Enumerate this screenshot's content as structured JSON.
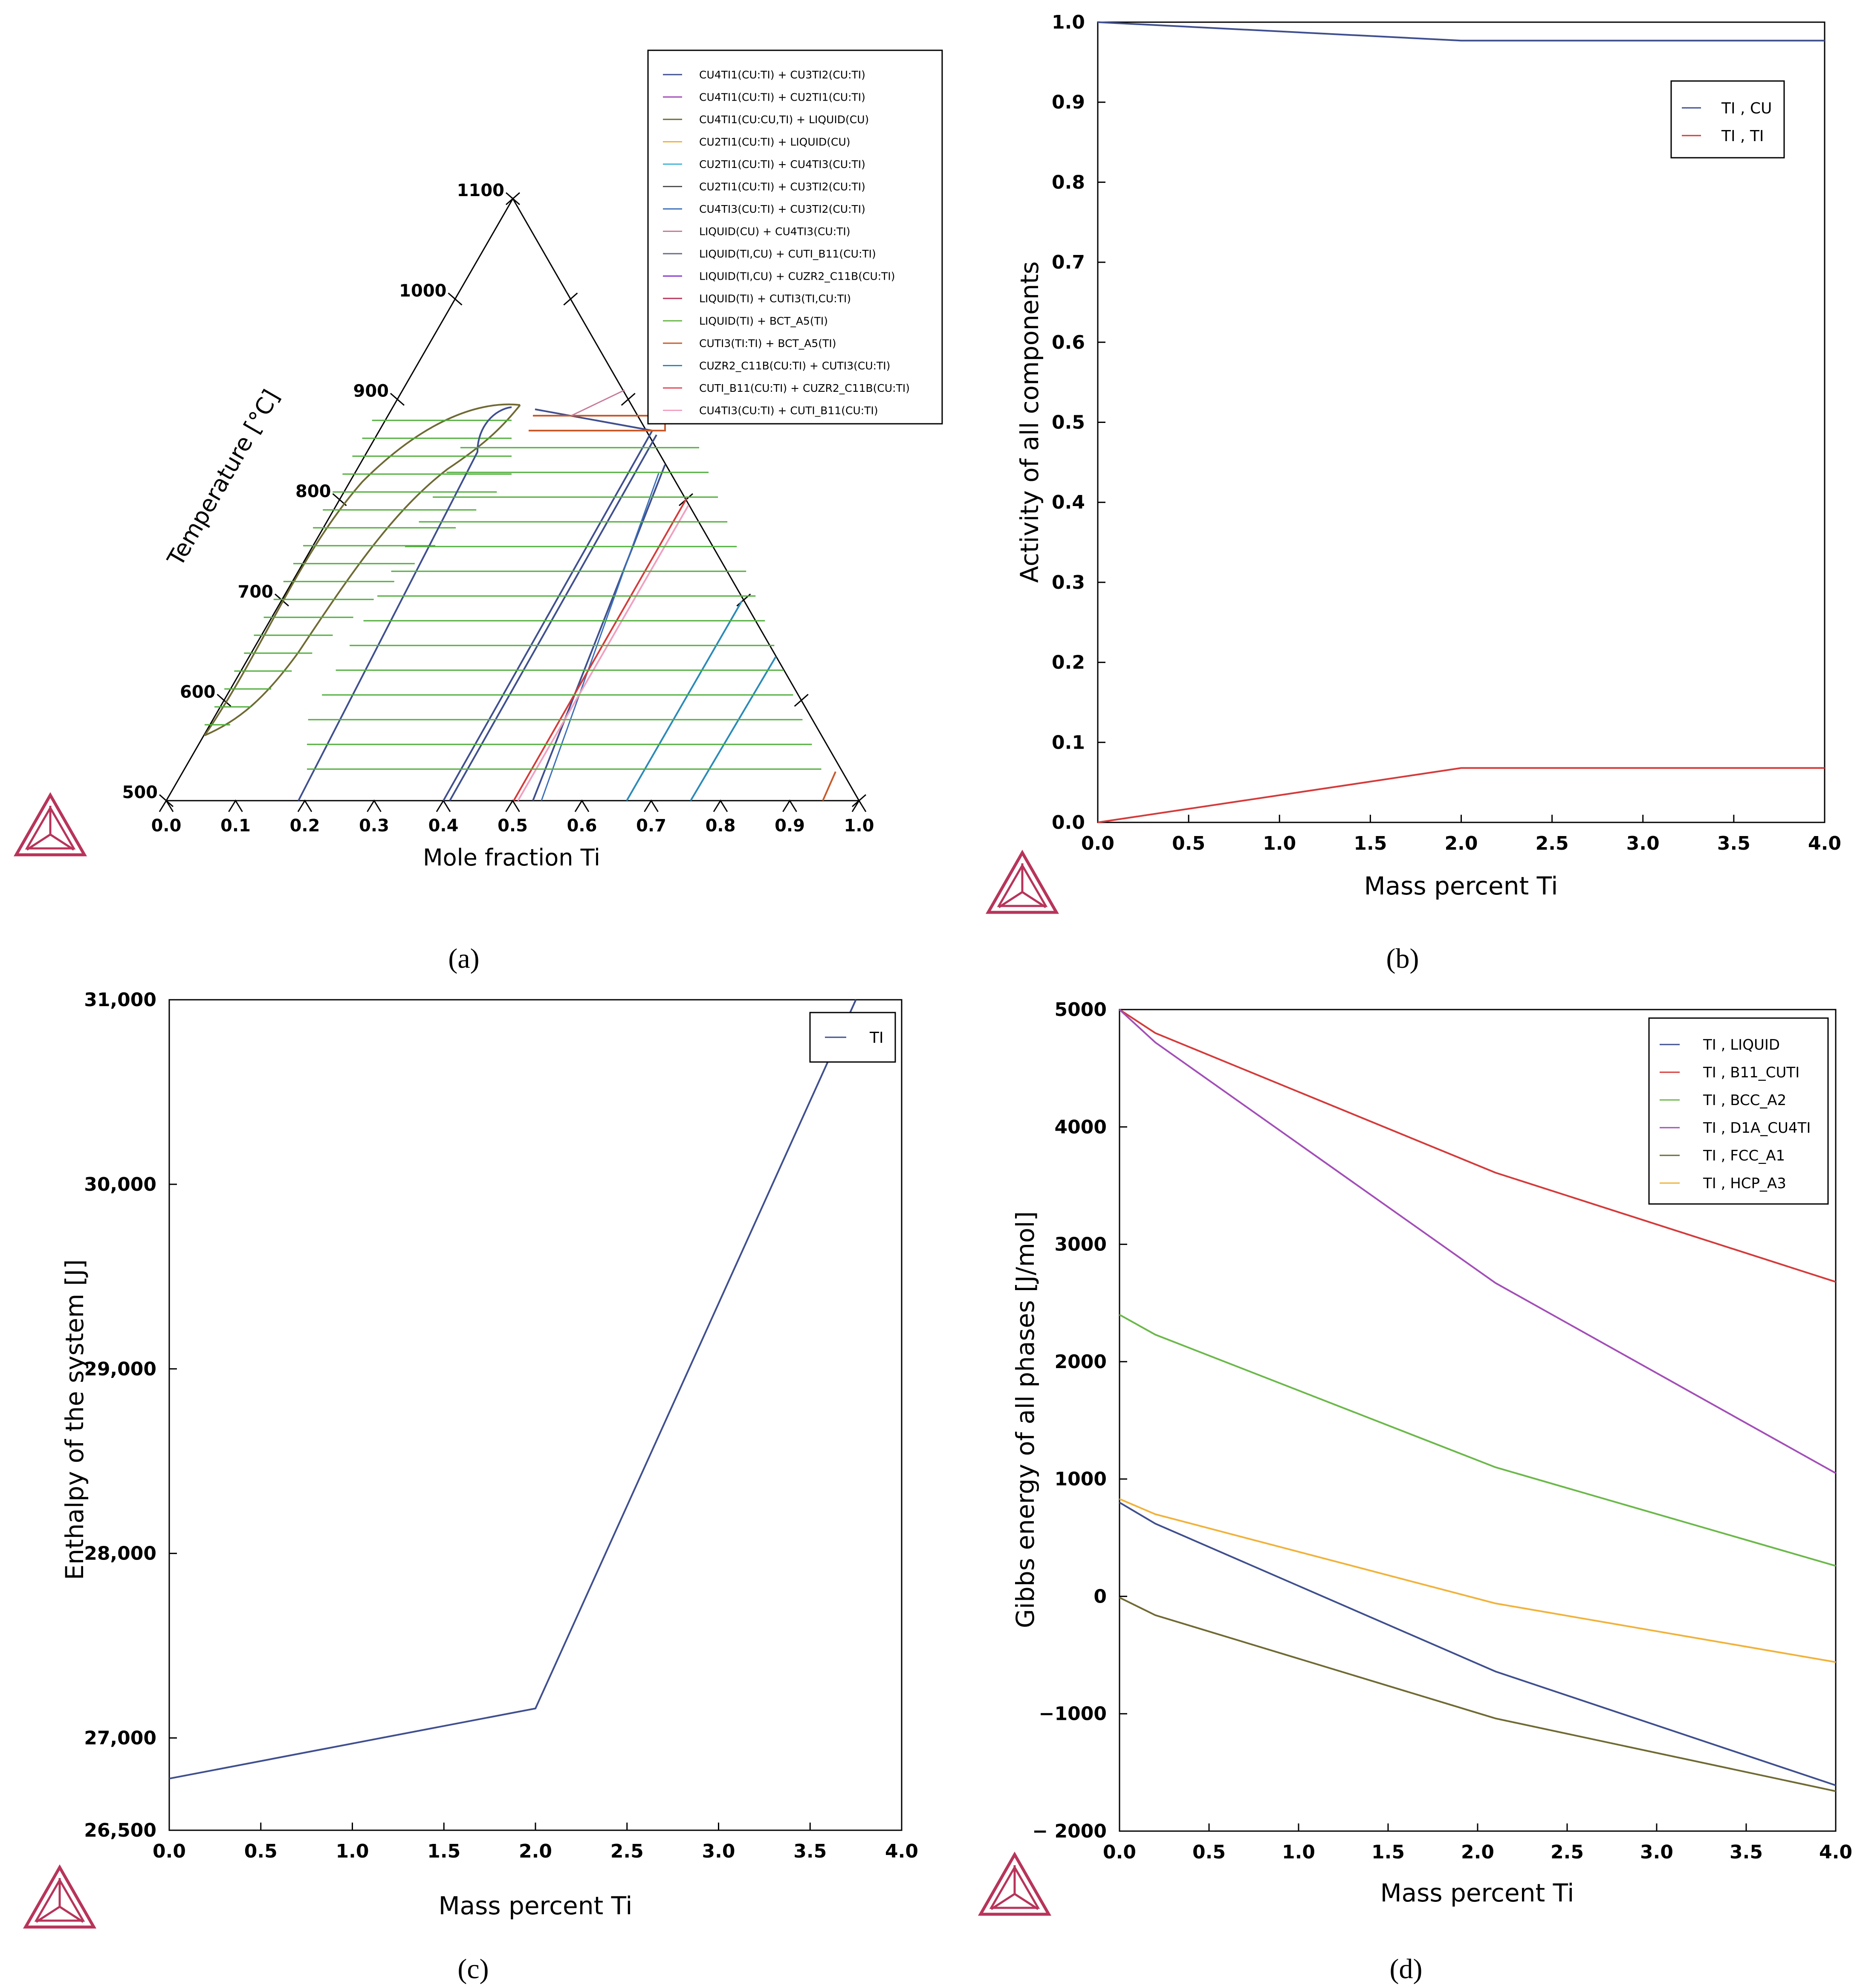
{
  "colors": {
    "blue": "#3f4f8f",
    "red": "#d53a3a",
    "green": "#6bb84a",
    "purple": "#a34fb8",
    "olive": "#6f6a33",
    "orange": "#f1b23a",
    "tie_green": "#4fae3a",
    "logo": "#b8345a"
  },
  "panel_labels": [
    "(a)",
    "(b)",
    "(c)",
    "(d)"
  ],
  "chart_data": [
    {
      "type": "line",
      "panel": "a",
      "title": "",
      "xlabel": "Mole fraction Ti",
      "ylabel": "Temperature [°C]",
      "x_ticks": [
        "0.0",
        "0.1",
        "0.2",
        "0.3",
        "0.4",
        "0.5",
        "0.6",
        "0.7",
        "0.8",
        "0.9",
        "1.0"
      ],
      "y_ticks": [
        "500",
        "600",
        "700",
        "800",
        "900",
        "1000",
        "1100"
      ],
      "legend": [
        {
          "label": "CU4TI1(CU:TI) + CU3TI2(CU:TI)",
          "color": "#3f4f8f"
        },
        {
          "label": "CU4TI1(CU:TI) + CU2TI1(CU:TI)",
          "color": "#a34fb8"
        },
        {
          "label": "CU4TI1(CU:CU,TI) + LIQUID(CU)",
          "color": "#6f6a33"
        },
        {
          "label": "CU2TI1(CU:TI) + LIQUID(CU)",
          "color": "#f1b23a"
        },
        {
          "label": "CU2TI1(CU:TI) + CU4TI3(CU:TI)",
          "color": "#3fb3d6"
        },
        {
          "label": "CU2TI1(CU:TI) + CU3TI2(CU:TI)",
          "color": "#555555"
        },
        {
          "label": "CU4TI3(CU:TI) + CU3TI2(CU:TI)",
          "color": "#3a6fb8"
        },
        {
          "label": "LIQUID(CU) + CU4TI3(CU:TI)",
          "color": "#c77a9a"
        },
        {
          "label": "LIQUID(TI,CU) + CUTI_B11(CU:TI)",
          "color": "#6a6a8a"
        },
        {
          "label": "LIQUID(TI,CU) + CUZR2_C11B(CU:TI)",
          "color": "#8a3fd0"
        },
        {
          "label": "LIQUID(TI) + CUTI3(TI,CU:TI)",
          "color": "#b8345a"
        },
        {
          "label": "LIQUID(TI) + BCT_A5(TI)",
          "color": "#6bb84a"
        },
        {
          "label": "CUTI3(TI:TI) + BCT_A5(TI)",
          "color": "#c85a2a"
        },
        {
          "label": "CUZR2_C11B(CU:TI) + CUTI3(CU:TI)",
          "color": "#2a8ab8"
        },
        {
          "label": "CUTI_B11(CU:TI) + CUZR2_C11B(CU:TI)",
          "color": "#e04a5a"
        },
        {
          "label": "CU4TI3(CU:TI) + CUTI_B11(CU:TI)",
          "color": "#f0a0c0"
        }
      ]
    },
    {
      "type": "line",
      "panel": "b",
      "title": "",
      "xlabel": "Mass percent Ti",
      "ylabel": "Activity of all components",
      "xlim": [
        0,
        4
      ],
      "ylim": [
        0,
        1
      ],
      "x_ticks": [
        "0.0",
        "0.5",
        "1.0",
        "1.5",
        "2.0",
        "2.5",
        "3.0",
        "3.5",
        "4.0"
      ],
      "y_ticks": [
        "0.0",
        "0.1",
        "0.2",
        "0.3",
        "0.4",
        "0.5",
        "0.6",
        "0.7",
        "0.8",
        "0.9",
        "1.0"
      ],
      "series": [
        {
          "name": "TI , CU",
          "color": "#3f4f8f",
          "x": [
            0,
            2,
            4
          ],
          "y": [
            1.0,
            0.977,
            0.977
          ]
        },
        {
          "name": "TI , TI",
          "color": "#d53a3a",
          "x": [
            0,
            2,
            4
          ],
          "y": [
            0.0,
            0.068,
            0.068
          ]
        }
      ]
    },
    {
      "type": "line",
      "panel": "c",
      "title": "",
      "xlabel": "Mass percent Ti",
      "ylabel": "Enthalpy of the system [J]",
      "xlim": [
        0,
        4
      ],
      "ylim": [
        26500,
        31000
      ],
      "x_ticks": [
        "0.0",
        "0.5",
        "1.0",
        "1.5",
        "2.0",
        "2.5",
        "3.0",
        "3.5",
        "4.0"
      ],
      "y_ticks": [
        "26,500",
        "27,000",
        "28,000",
        "29,000",
        "30,000",
        "31,000"
      ],
      "y_tick_values": [
        26500,
        27000,
        28000,
        29000,
        30000,
        31000
      ],
      "series": [
        {
          "name": "TI",
          "color": "#3f4f8f",
          "x": [
            0,
            2,
            3.75
          ],
          "y": [
            26780,
            27160,
            31000
          ]
        }
      ]
    },
    {
      "type": "line",
      "panel": "d",
      "title": "",
      "xlabel": "Mass percent Ti",
      "ylabel": "Gibbs energy of all phases [J/mol]",
      "xlim": [
        0,
        4
      ],
      "ylim": [
        -2000,
        5000
      ],
      "x_ticks": [
        "0.0",
        "0.5",
        "1.0",
        "1.5",
        "2.0",
        "2.5",
        "3.0",
        "3.5",
        "4.0"
      ],
      "y_ticks": [
        "− 2000",
        "−1000",
        "0",
        "1000",
        "2000",
        "3000",
        "4000",
        "5000"
      ],
      "y_tick_values": [
        -2000,
        -1000,
        0,
        1000,
        2000,
        3000,
        4000,
        5000
      ],
      "series": [
        {
          "name": "TI , LIQUID",
          "color": "#3f4f8f",
          "x": [
            0,
            0.2,
            2.1,
            4
          ],
          "y": [
            800,
            620,
            -640,
            -1610
          ]
        },
        {
          "name": "TI , B11_CUTI",
          "color": "#d53a3a",
          "x": [
            0,
            0.2,
            2.1,
            4
          ],
          "y": [
            5000,
            4800,
            3610,
            2680
          ]
        },
        {
          "name": "TI , BCC_A2",
          "color": "#6bb84a",
          "x": [
            0,
            0.2,
            2.1,
            4
          ],
          "y": [
            2400,
            2230,
            1100,
            260
          ]
        },
        {
          "name": "TI , D1A_CU4TI",
          "color": "#a34fb8",
          "x": [
            0,
            0.2,
            2.1,
            4
          ],
          "y": [
            5000,
            4720,
            2670,
            1050
          ]
        },
        {
          "name": "TI , FCC_A1",
          "color": "#6f6a33",
          "x": [
            0,
            0.2,
            2.1,
            4
          ],
          "y": [
            -10,
            -160,
            -1040,
            -1660
          ]
        },
        {
          "name": "TI , HCP_A3",
          "color": "#f1b23a",
          "x": [
            0,
            0.2,
            2.1,
            4
          ],
          "y": [
            830,
            700,
            -60,
            -560
          ]
        }
      ]
    }
  ]
}
